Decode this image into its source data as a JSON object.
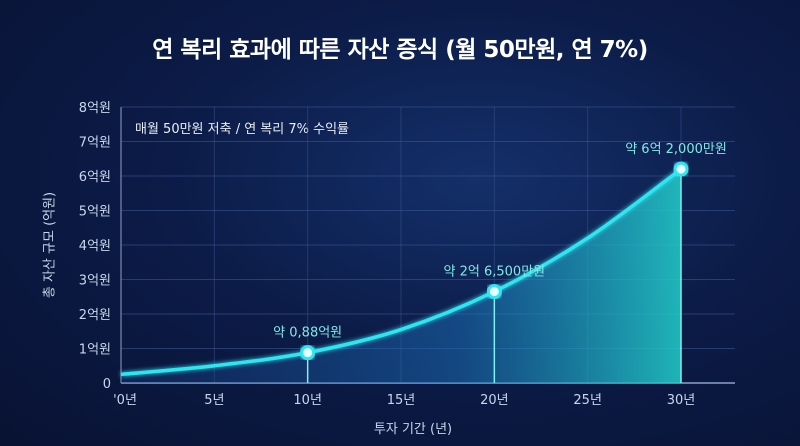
{
  "chart_data": {
    "type": "area",
    "title": "연 복리 효과에 따른 자산 증식 (월 50만원, 연 7%)",
    "subtitle": "매월 50만원 저축 / 연 복리 7% 수익률",
    "xlabel": "투자 기간 (년)",
    "ylabel": "총 자산 규모 (억원)",
    "xlim": [
      0,
      33
    ],
    "ylim": [
      0,
      8
    ],
    "grid": true,
    "x_ticks": [
      {
        "v": 0,
        "label": "'0년"
      },
      {
        "v": 5,
        "label": "5년"
      },
      {
        "v": 10,
        "label": "10년"
      },
      {
        "v": 15,
        "label": "15년"
      },
      {
        "v": 20,
        "label": "20년"
      },
      {
        "v": 25,
        "label": "25년"
      },
      {
        "v": 30,
        "label": "30년"
      }
    ],
    "y_ticks": [
      {
        "v": 0,
        "label": "0"
      },
      {
        "v": 1,
        "label": "1억원"
      },
      {
        "v": 2,
        "label": "2억원"
      },
      {
        "v": 3,
        "label": "3억원"
      },
      {
        "v": 4,
        "label": "4억원"
      },
      {
        "v": 5,
        "label": "5억원"
      },
      {
        "v": 6,
        "label": "6억원"
      },
      {
        "v": 7,
        "label": "7억원"
      },
      {
        "v": 8,
        "label": "8억원"
      }
    ],
    "x": [
      0,
      5,
      10,
      15,
      20,
      25,
      30
    ],
    "values": [
      0.25,
      0.5,
      0.88,
      1.55,
      2.65,
      4.2,
      6.2
    ],
    "annotations": [
      {
        "x": 10,
        "y": 0.88,
        "label": "약 0,88억원"
      },
      {
        "x": 20,
        "y": 2.65,
        "label": "약 2억 6,500만원"
      },
      {
        "x": 30,
        "y": 6.2,
        "label": "약 6억 2,000만원"
      }
    ],
    "colors": {
      "line": "#2ee6f0",
      "fill": "#1fc9c9",
      "background": "#0c1c48"
    }
  }
}
